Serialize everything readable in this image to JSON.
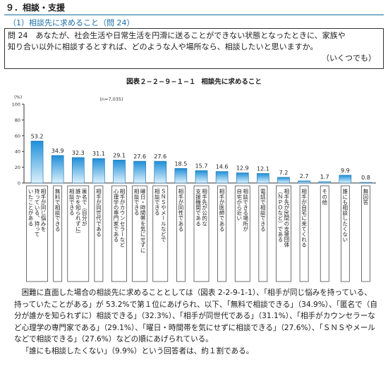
{
  "section": {
    "title": "９．相談・支援",
    "subtitle": "（1）相談先に求めること（問 24）"
  },
  "question": {
    "line1": "問 24　あなたが、社会生活や日常生活を円滑に送ることができない状態となったときに、家族や",
    "line2": "知り合い以外に相談するとすれば、どのような人や場所なら、相談したいと思いますか。",
    "line3": "（いくつでも）"
  },
  "figure": {
    "number": "図表２−２−９−１−１",
    "title": "相談先に求めること"
  },
  "chart_data": {
    "type": "bar",
    "n_label": "(n=7,035)",
    "unit_label": "(%)",
    "ylim": [
      0,
      100
    ],
    "yticks": [
      "100",
      "80",
      "60",
      "40",
      "20",
      "0"
    ],
    "grid": false,
    "colors": {
      "bar_top": "#1e8fd8",
      "bar_bottom": "#ddf1fc",
      "bar_stroke": "#1a6fa8"
    },
    "value_labels": [
      "53.2",
      "34.9",
      "32.3",
      "31.1",
      "29.1",
      "27.6",
      "27.6",
      "18.5",
      "15.7",
      "14.6",
      "12.9",
      "12.1",
      "7.2",
      "2.7",
      "1.7",
      "9.9",
      "0.8"
    ],
    "values": [
      53.2,
      34.9,
      32.3,
      31.1,
      29.1,
      27.6,
      27.6,
      18.5,
      15.7,
      14.6,
      12.9,
      12.1,
      7.2,
      2.7,
      1.7,
      9.9,
      0.8
    ],
    "categories": [
      [
        "相手が同じ悩みを",
        "持っている、持って",
        "いたことがある"
      ],
      [
        "無料で相談できる"
      ],
      [
        "匿名で（自分が",
        "誰かを知られずに）",
        "相談できる"
      ],
      [
        "相手が同世代である"
      ],
      [
        "相手がカウンセラーなど",
        "心理学の専門家である"
      ],
      [
        "曜日・時間帯を気にせずに",
        "相談できる"
      ],
      [
        "ＳＮＳやメールなどで",
        "相談できる"
      ],
      [
        "相手が同性である"
      ],
      [
        "相手先が公的な",
        "支援機関である"
      ],
      [
        "相手が医師である"
      ],
      [
        "相談できる場所が",
        "自宅から近い"
      ],
      [
        "電話で相談できる"
      ],
      [
        "相手先が民間の支援団体",
        "（ＮＰＯなど）である"
      ],
      [
        "相手が自宅に来てくれる"
      ],
      [
        "その他"
      ],
      [
        "誰にも相談したくない"
      ],
      [
        "無回答"
      ]
    ]
  },
  "body": {
    "para1": "困難に直面した場合の相談先に求めることとしては（図表 2-2-9-1-1）、「相手が同じ悩みを持っている、持っていたことがある」が 53.2%で第１位にあげられ、以下、「無料で相談できる」（34.9%）、「匿名で（自分が誰かを知られずに）相談できる」（32.3%）、「相手が同世代である」（31.1%）、「相手がカウンセラーなど心理学の専門家である」（29.1%）、「曜日・時間帯を気にせずに相談できる」（27.6%）、「ＳＮＳやメールなどで相談できる」（27.6%）などの順にあげられている。",
    "para2": "「誰にも相談したくない」（9.9%）という回答者は、約１割である。"
  }
}
